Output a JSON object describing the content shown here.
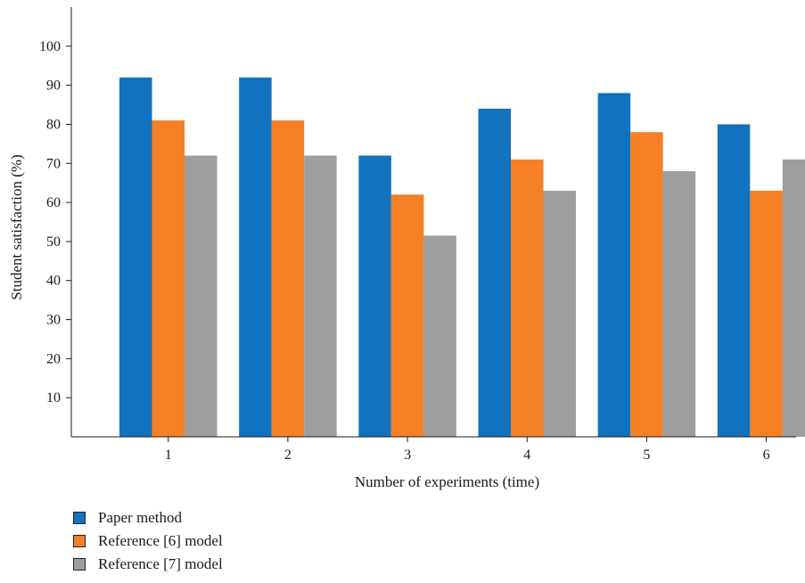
{
  "chart_data": {
    "type": "bar",
    "categories": [
      "1",
      "2",
      "3",
      "4",
      "5",
      "6"
    ],
    "series": [
      {
        "name": "Paper method",
        "color": "#1172bf",
        "values": [
          92,
          92,
          72,
          84,
          88,
          80
        ]
      },
      {
        "name": "Reference [6] model",
        "color": "#f58025",
        "values": [
          81,
          81,
          62,
          71,
          78,
          63
        ]
      },
      {
        "name": "Reference [7] model",
        "color": "#9c9e9f",
        "values": [
          72,
          72,
          51.5,
          63,
          68,
          71
        ]
      }
    ],
    "title": "",
    "xlabel": "Number of experiments (time)",
    "ylabel": "Student satisfaction (%)",
    "ylim": [
      0,
      110
    ],
    "yticks": [
      10,
      20,
      30,
      40,
      50,
      60,
      70,
      80,
      90,
      100
    ],
    "grid": false,
    "legend_position": "bottom-left"
  }
}
